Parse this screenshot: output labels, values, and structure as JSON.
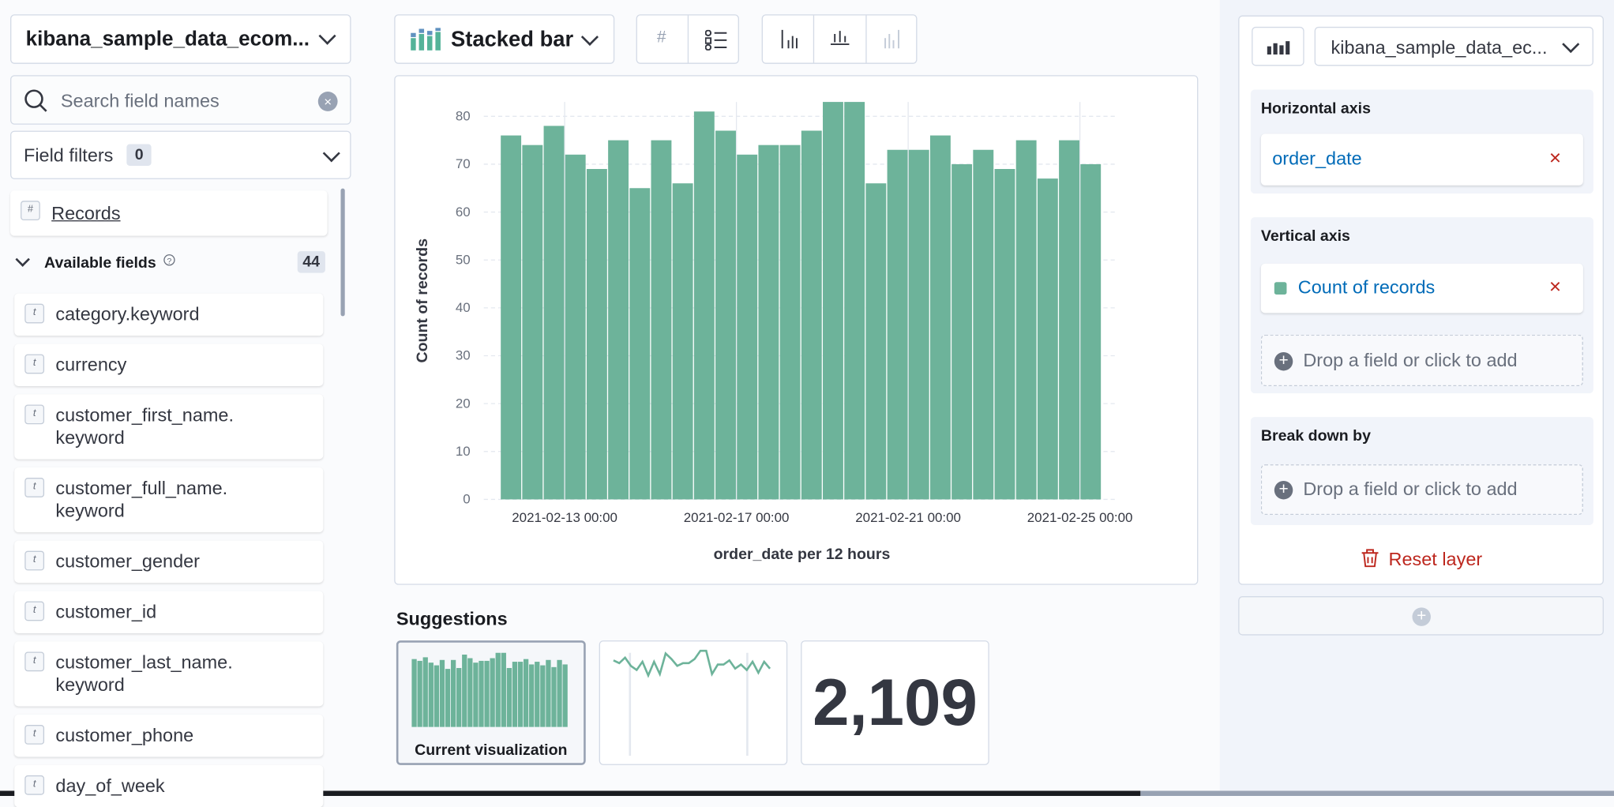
{
  "sidebar": {
    "index_pattern": "kibana_sample_data_ecom...",
    "search_placeholder": "Search field names",
    "field_filters": "Field filters",
    "filter_count": "0",
    "records": "Records",
    "available_fields": "Available fields",
    "available_count": "44",
    "fields": [
      [
        "category.keyword"
      ],
      [
        "currency"
      ],
      [
        "customer_first_name.",
        "keyword"
      ],
      [
        "customer_full_name.",
        "keyword"
      ],
      [
        "customer_gender"
      ],
      [
        "customer_id"
      ],
      [
        "customer_last_name.",
        "keyword"
      ],
      [
        "customer_phone"
      ],
      [
        "day_of_week"
      ]
    ]
  },
  "toolbar": {
    "chart_type": "Stacked bar"
  },
  "chart_data": {
    "type": "bar",
    "y_label": "Count of records",
    "x_label": "order_date per 12 hours",
    "categories": [
      null,
      null,
      null,
      "2021-02-13 00:00",
      null,
      null,
      null,
      null,
      null,
      null,
      null,
      "2021-02-17 00:00",
      null,
      null,
      null,
      null,
      null,
      null,
      null,
      "2021-02-21 00:00",
      null,
      null,
      null,
      null,
      null,
      null,
      null,
      "2021-02-25 00:00"
    ],
    "series": [
      {
        "name": "Count of records",
        "color": "#6db39a",
        "values": [
          76,
          74,
          78,
          72,
          69,
          75,
          65,
          75,
          66,
          81,
          77,
          72,
          74,
          74,
          77,
          83,
          83,
          66,
          73,
          73,
          76,
          70,
          73,
          69,
          75,
          67,
          75,
          70
        ]
      }
    ],
    "ylim": [
      0,
      83
    ],
    "yticks": [
      0,
      10,
      20,
      30,
      40,
      50,
      60,
      70,
      80
    ],
    "grid": true
  },
  "config": {
    "index_pattern": "kibana_sample_data_ec...",
    "horizontal_axis": "Horizontal axis",
    "horizontal_field": "order_date",
    "vertical_axis": "Vertical axis",
    "drop_vertical": "Drop a field or click to add",
    "break_down": "Break down by",
    "drop_breakdown": "Drop a field or click to add",
    "reset": "Reset layer"
  },
  "suggestions": {
    "title": "Suggestions",
    "current": "Current visualization",
    "metric": "2,109"
  }
}
